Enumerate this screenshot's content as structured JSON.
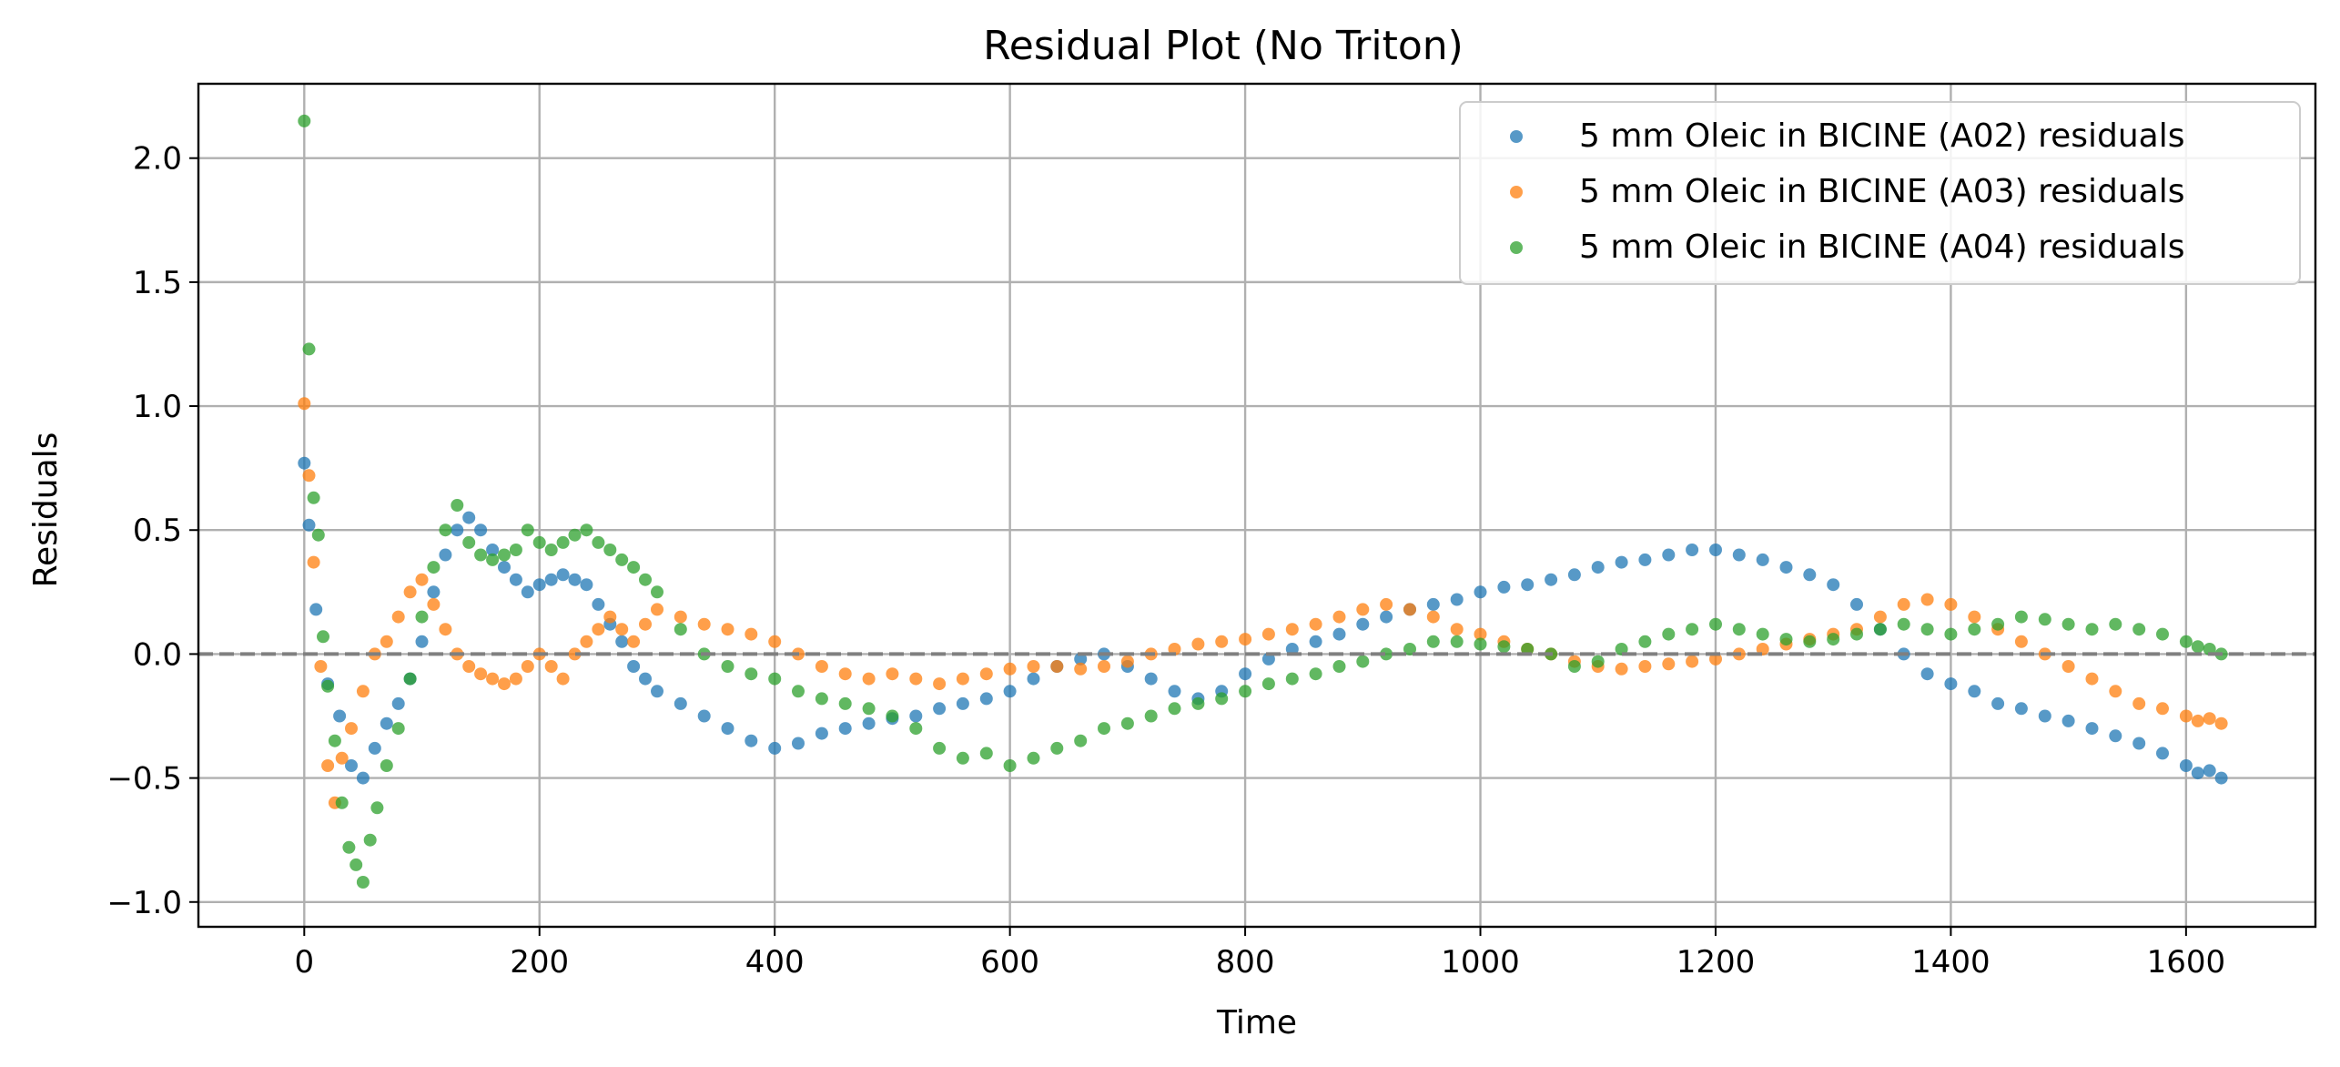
{
  "chart_data": {
    "type": "scatter",
    "title": "Residual Plot (No Triton)",
    "xlabel": "Time",
    "ylabel": "Residuals",
    "xlim": [
      -90,
      1710
    ],
    "ylim": [
      -1.1,
      2.3
    ],
    "xticks": [
      0,
      200,
      400,
      600,
      800,
      1000,
      1200,
      1400,
      1600
    ],
    "yticks": [
      -1.0,
      -0.5,
      0.0,
      0.5,
      1.0,
      1.5,
      2.0
    ],
    "ytick_labels": [
      "−1.0",
      "−0.5",
      "0.0",
      "0.5",
      "1.0",
      "1.5",
      "2.0"
    ],
    "grid": true,
    "reference_line": {
      "y": 0.0,
      "style": "dashed",
      "color": "#808080"
    },
    "legend_position": "top-right",
    "series": [
      {
        "name": "5 mm Oleic in BICINE (A02) residuals",
        "color": "#1f77b4",
        "x": [
          0,
          4,
          10,
          20,
          30,
          40,
          50,
          60,
          70,
          80,
          90,
          100,
          110,
          120,
          130,
          140,
          150,
          160,
          170,
          180,
          190,
          200,
          210,
          220,
          230,
          240,
          250,
          260,
          270,
          280,
          290,
          300,
          320,
          340,
          360,
          380,
          400,
          420,
          440,
          460,
          480,
          500,
          520,
          540,
          560,
          580,
          600,
          620,
          640,
          660,
          680,
          700,
          720,
          740,
          760,
          780,
          800,
          820,
          840,
          860,
          880,
          900,
          920,
          940,
          960,
          980,
          1000,
          1020,
          1040,
          1060,
          1080,
          1100,
          1120,
          1140,
          1160,
          1180,
          1200,
          1220,
          1240,
          1260,
          1280,
          1300,
          1320,
          1340,
          1360,
          1380,
          1400,
          1420,
          1440,
          1460,
          1480,
          1500,
          1520,
          1540,
          1560,
          1580,
          1600,
          1610,
          1620,
          1630
        ],
        "y": [
          0.77,
          0.52,
          0.18,
          -0.12,
          -0.25,
          -0.45,
          -0.5,
          -0.38,
          -0.28,
          -0.2,
          -0.1,
          0.05,
          0.25,
          0.4,
          0.5,
          0.55,
          0.5,
          0.42,
          0.35,
          0.3,
          0.25,
          0.28,
          0.3,
          0.32,
          0.3,
          0.28,
          0.2,
          0.12,
          0.05,
          -0.05,
          -0.1,
          -0.15,
          -0.2,
          -0.25,
          -0.3,
          -0.35,
          -0.38,
          -0.36,
          -0.32,
          -0.3,
          -0.28,
          -0.26,
          -0.25,
          -0.22,
          -0.2,
          -0.18,
          -0.15,
          -0.1,
          -0.05,
          -0.02,
          0.0,
          -0.05,
          -0.1,
          -0.15,
          -0.18,
          -0.15,
          -0.08,
          -0.02,
          0.02,
          0.05,
          0.08,
          0.12,
          0.15,
          0.18,
          0.2,
          0.22,
          0.25,
          0.27,
          0.28,
          0.3,
          0.32,
          0.35,
          0.37,
          0.38,
          0.4,
          0.42,
          0.42,
          0.4,
          0.38,
          0.35,
          0.32,
          0.28,
          0.2,
          0.1,
          0.0,
          -0.08,
          -0.12,
          -0.15,
          -0.2,
          -0.22,
          -0.25,
          -0.27,
          -0.3,
          -0.33,
          -0.36,
          -0.4,
          -0.45,
          -0.48,
          -0.47,
          -0.5
        ]
      },
      {
        "name": "5 mm Oleic in BICINE (A03) residuals",
        "color": "#ff7f0e",
        "x": [
          0,
          4,
          8,
          14,
          20,
          26,
          32,
          40,
          50,
          60,
          70,
          80,
          90,
          100,
          110,
          120,
          130,
          140,
          150,
          160,
          170,
          180,
          190,
          200,
          210,
          220,
          230,
          240,
          250,
          260,
          270,
          280,
          290,
          300,
          320,
          340,
          360,
          380,
          400,
          420,
          440,
          460,
          480,
          500,
          520,
          540,
          560,
          580,
          600,
          620,
          640,
          660,
          680,
          700,
          720,
          740,
          760,
          780,
          800,
          820,
          840,
          860,
          880,
          900,
          920,
          940,
          960,
          980,
          1000,
          1020,
          1040,
          1060,
          1080,
          1100,
          1120,
          1140,
          1160,
          1180,
          1200,
          1220,
          1240,
          1260,
          1280,
          1300,
          1320,
          1340,
          1360,
          1380,
          1400,
          1420,
          1440,
          1460,
          1480,
          1500,
          1520,
          1540,
          1560,
          1580,
          1600,
          1610,
          1620,
          1630
        ],
        "y": [
          1.01,
          0.72,
          0.37,
          -0.05,
          -0.45,
          -0.6,
          -0.42,
          -0.3,
          -0.15,
          0.0,
          0.05,
          0.15,
          0.25,
          0.3,
          0.2,
          0.1,
          0.0,
          -0.05,
          -0.08,
          -0.1,
          -0.12,
          -0.1,
          -0.05,
          0.0,
          -0.05,
          -0.1,
          0.0,
          0.05,
          0.1,
          0.15,
          0.1,
          0.05,
          0.12,
          0.18,
          0.15,
          0.12,
          0.1,
          0.08,
          0.05,
          0.0,
          -0.05,
          -0.08,
          -0.1,
          -0.08,
          -0.1,
          -0.12,
          -0.1,
          -0.08,
          -0.06,
          -0.05,
          -0.05,
          -0.06,
          -0.05,
          -0.03,
          0.0,
          0.02,
          0.04,
          0.05,
          0.06,
          0.08,
          0.1,
          0.12,
          0.15,
          0.18,
          0.2,
          0.18,
          0.15,
          0.1,
          0.08,
          0.05,
          0.02,
          0.0,
          -0.03,
          -0.05,
          -0.06,
          -0.05,
          -0.04,
          -0.03,
          -0.02,
          0.0,
          0.02,
          0.04,
          0.06,
          0.08,
          0.1,
          0.15,
          0.2,
          0.22,
          0.2,
          0.15,
          0.1,
          0.05,
          0.0,
          -0.05,
          -0.1,
          -0.15,
          -0.2,
          -0.22,
          -0.25,
          -0.27,
          -0.26,
          -0.28
        ]
      },
      {
        "name": "5 mm Oleic in BICINE (A04) residuals",
        "color": "#2ca02c",
        "x": [
          0,
          4,
          8,
          12,
          16,
          20,
          26,
          32,
          38,
          44,
          50,
          56,
          62,
          70,
          80,
          90,
          100,
          110,
          120,
          130,
          140,
          150,
          160,
          170,
          180,
          190,
          200,
          210,
          220,
          230,
          240,
          250,
          260,
          270,
          280,
          290,
          300,
          320,
          340,
          360,
          380,
          400,
          420,
          440,
          460,
          480,
          500,
          520,
          540,
          560,
          580,
          600,
          620,
          640,
          660,
          680,
          700,
          720,
          740,
          760,
          780,
          800,
          820,
          840,
          860,
          880,
          900,
          920,
          940,
          960,
          980,
          1000,
          1020,
          1040,
          1060,
          1080,
          1100,
          1120,
          1140,
          1160,
          1180,
          1200,
          1220,
          1240,
          1260,
          1280,
          1300,
          1320,
          1340,
          1360,
          1380,
          1400,
          1420,
          1440,
          1460,
          1480,
          1500,
          1520,
          1540,
          1560,
          1580,
          1600,
          1610,
          1620,
          1630
        ],
        "y": [
          2.15,
          1.23,
          0.63,
          0.48,
          0.07,
          -0.13,
          -0.35,
          -0.6,
          -0.78,
          -0.85,
          -0.92,
          -0.75,
          -0.62,
          -0.45,
          -0.3,
          -0.1,
          0.15,
          0.35,
          0.5,
          0.6,
          0.45,
          0.4,
          0.38,
          0.4,
          0.42,
          0.5,
          0.45,
          0.42,
          0.45,
          0.48,
          0.5,
          0.45,
          0.42,
          0.38,
          0.35,
          0.3,
          0.25,
          0.1,
          0.0,
          -0.05,
          -0.08,
          -0.1,
          -0.15,
          -0.18,
          -0.2,
          -0.22,
          -0.25,
          -0.3,
          -0.38,
          -0.42,
          -0.4,
          -0.45,
          -0.42,
          -0.38,
          -0.35,
          -0.3,
          -0.28,
          -0.25,
          -0.22,
          -0.2,
          -0.18,
          -0.15,
          -0.12,
          -0.1,
          -0.08,
          -0.05,
          -0.03,
          0.0,
          0.02,
          0.05,
          0.05,
          0.04,
          0.03,
          0.02,
          0.0,
          -0.05,
          -0.03,
          0.02,
          0.05,
          0.08,
          0.1,
          0.12,
          0.1,
          0.08,
          0.06,
          0.05,
          0.06,
          0.08,
          0.1,
          0.12,
          0.1,
          0.08,
          0.1,
          0.12,
          0.15,
          0.14,
          0.12,
          0.1,
          0.12,
          0.1,
          0.08,
          0.05,
          0.03,
          0.02,
          0.0
        ]
      }
    ]
  }
}
